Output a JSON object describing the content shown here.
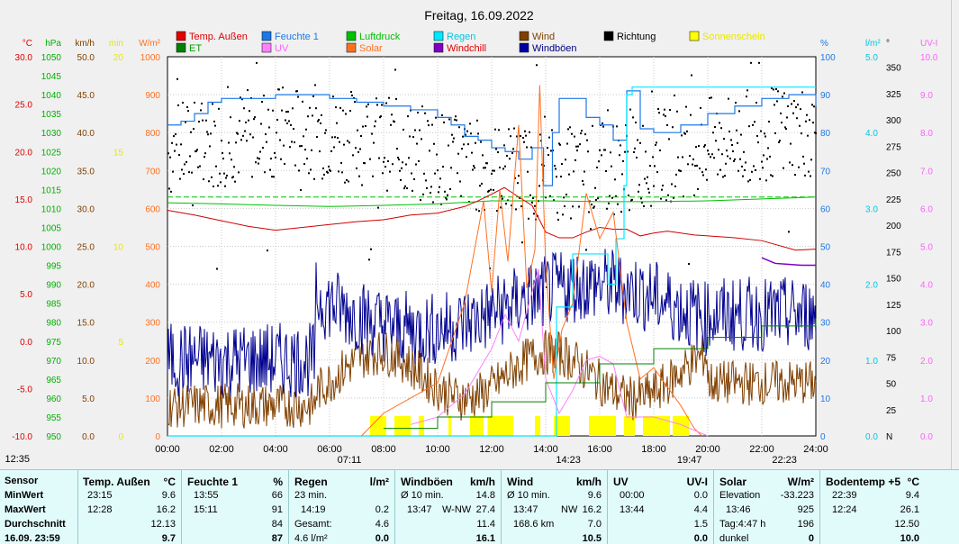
{
  "title": "Freitag, 16.09.2022",
  "chart_data": {
    "type": "line",
    "title": "Freitag, 16.09.2022",
    "x_ticks": [
      "00:00",
      "02:00",
      "04:00",
      "06:00",
      "08:00",
      "10:00",
      "12:00",
      "14:00",
      "16:00",
      "18:00",
      "20:00",
      "22:00",
      "24:00"
    ],
    "x_range_hours": [
      0,
      24
    ],
    "grid": "on",
    "legend_placement": "top",
    "legend": [
      {
        "name": "Temp. Außen",
        "color": "#e00000",
        "text_color": "#e00000"
      },
      {
        "name": "Feuchte 1",
        "color": "#1e78e6",
        "text_color": "#1e78e6"
      },
      {
        "name": "Luftdruck",
        "color": "#00c000",
        "text_color": "#00c000"
      },
      {
        "name": "Regen",
        "color": "#00e8ff",
        "text_color": "#00c8e0"
      },
      {
        "name": "Wind",
        "color": "#804000",
        "text_color": "#804000"
      },
      {
        "name": "Richtung",
        "color": "#000000",
        "text_color": "#000000"
      },
      {
        "name": "Sonnenschein",
        "color": "#ffff00",
        "text_color": "#e8e800"
      },
      {
        "name": "ET",
        "color": "#008000",
        "text_color": "#00a000"
      },
      {
        "name": "UV",
        "color": "#ff80ff",
        "text_color": "#ff60ff"
      },
      {
        "name": "Solar",
        "color": "#ff7020",
        "text_color": "#ff7020"
      },
      {
        "name": "Windchill",
        "color": "#8000c0",
        "text_color": "#e00000"
      },
      {
        "name": "Windböen",
        "color": "#0000a0",
        "text_color": "#000080"
      }
    ],
    "axes": [
      {
        "unit": "°C",
        "color": "#e00000",
        "ticks": [
          "30.0",
          "25.0",
          "20.0",
          "15.0",
          "10.0",
          "5.0",
          "0.0",
          "-5.0",
          "-10.0"
        ],
        "range": [
          -10,
          30
        ]
      },
      {
        "unit": "hPa",
        "color": "#00b000",
        "ticks": [
          "1050",
          "1045",
          "1040",
          "1035",
          "1030",
          "1025",
          "1020",
          "1015",
          "1010",
          "1005",
          "1000",
          "995",
          "990",
          "985",
          "980",
          "975",
          "970",
          "965",
          "960",
          "955",
          "950"
        ],
        "range": [
          950,
          1050
        ]
      },
      {
        "unit": "km/h",
        "color": "#804000",
        "ticks": [
          "50.0",
          "45.0",
          "40.0",
          "35.0",
          "30.0",
          "25.0",
          "20.0",
          "15.0",
          "10.0",
          "5.0",
          "0.0"
        ],
        "range": [
          0,
          50
        ]
      },
      {
        "unit": "min",
        "color": "#e8e800",
        "ticks": [
          "20",
          "15",
          "10",
          "5",
          "0"
        ],
        "range": [
          0,
          20
        ]
      },
      {
        "unit": "W/m²",
        "color": "#ff7020",
        "ticks": [
          "1000",
          "900",
          "800",
          "700",
          "600",
          "500",
          "400",
          "300",
          "200",
          "100",
          "0"
        ],
        "range": [
          0,
          1000
        ]
      },
      {
        "unit": "%",
        "color": "#1e78e6",
        "ticks": [
          "100",
          "90",
          "80",
          "70",
          "60",
          "50",
          "40",
          "30",
          "20",
          "10",
          "0"
        ],
        "range": [
          0,
          100
        ]
      },
      {
        "unit": "l/m²",
        "color": "#00c8e0",
        "ticks": [
          "5.0",
          "4.0",
          "3.0",
          "2.0",
          "1.0",
          "0.0"
        ],
        "range": [
          0,
          5
        ]
      },
      {
        "unit": "°",
        "color": "#000000",
        "ticks": [
          "350",
          "325",
          "300",
          "275",
          "250",
          "225",
          "200",
          "175",
          "150",
          "125",
          "100",
          "75",
          "50",
          "25",
          "N"
        ],
        "range": [
          0,
          360
        ]
      },
      {
        "unit": "UV-I",
        "color": "#ff60ff",
        "ticks": [
          "10.0",
          "9.0",
          "8.0",
          "7.0",
          "6.0",
          "5.0",
          "4.0",
          "3.0",
          "2.0",
          "1.0",
          "0.0"
        ],
        "range": [
          0,
          10
        ]
      }
    ],
    "temperature_c": {
      "x": [
        0,
        1,
        2,
        3,
        4,
        5,
        6,
        7,
        8,
        9,
        10,
        11,
        11.5,
        12,
        12.47,
        13,
        13.5,
        14,
        14.5,
        15,
        15.5,
        16,
        16.5,
        17,
        17.5,
        18,
        18.5,
        19,
        19.5,
        20,
        21,
        22,
        23.25,
        24
      ],
      "y": [
        13.8,
        13.3,
        12.7,
        12.1,
        11.7,
        12.0,
        12.3,
        12.6,
        12.8,
        13.3,
        13.5,
        14.2,
        14.8,
        15.5,
        16.2,
        15.2,
        14.3,
        11.5,
        10.9,
        10.9,
        11.5,
        12.0,
        11.8,
        11.8,
        11.1,
        11.4,
        11.6,
        11.4,
        11.2,
        11.1,
        10.9,
        10.6,
        9.6,
        9.7
      ]
    },
    "humidity_pct": {
      "x": [
        0,
        0.5,
        1,
        1.5,
        2,
        3,
        4,
        5,
        6,
        7,
        8,
        9,
        10,
        10.5,
        11,
        11.5,
        12,
        12.5,
        13,
        13.5,
        13.92,
        14.25,
        14.5,
        15,
        15.5,
        16,
        16.5,
        17,
        17.5,
        18,
        19,
        20,
        21,
        22,
        23,
        24
      ],
      "y": [
        82,
        83,
        85,
        88,
        89,
        89,
        90,
        90,
        89,
        88,
        87,
        86,
        84,
        82,
        79,
        78,
        76,
        75,
        73,
        76,
        66,
        80,
        89,
        89,
        84,
        82,
        78,
        91,
        81,
        80,
        82,
        85,
        87,
        89,
        90,
        87
      ]
    },
    "pressure_hpa": {
      "x": [
        0,
        2,
        4,
        6,
        8,
        10,
        12,
        14,
        16,
        18,
        20,
        22,
        24
      ],
      "y": [
        1011.5,
        1011.2,
        1010.8,
        1010.5,
        1010.8,
        1011.2,
        1012,
        1012,
        1011.8,
        1011.8,
        1012,
        1012.5,
        1013
      ]
    },
    "rain_mm": {
      "x": [
        0,
        14.2,
        14.4,
        15,
        16,
        16.3,
        16.6,
        16.9,
        17,
        17.2,
        24
      ],
      "y": [
        0,
        0,
        1.7,
        2.4,
        2.4,
        2.0,
        2.6,
        3.3,
        4.5,
        4.6,
        4.6
      ]
    },
    "solar_wm2": {
      "x": [
        7.18,
        8,
        9,
        10,
        11,
        11.7,
        12,
        12.3,
        12.6,
        13,
        13.3,
        13.6,
        13.78,
        14,
        14.3,
        14.6,
        15,
        15.5,
        16,
        16.5,
        17,
        17.5,
        18,
        18.5,
        19,
        19.5,
        19.78
      ],
      "y": [
        0,
        60,
        100,
        140,
        350,
        620,
        380,
        650,
        460,
        820,
        390,
        490,
        925,
        450,
        150,
        280,
        350,
        640,
        520,
        590,
        300,
        150,
        180,
        130,
        80,
        20,
        0
      ]
    },
    "uv_index": {
      "x": [
        9,
        10,
        11,
        12,
        12.5,
        13,
        13.73,
        14,
        14.5,
        15,
        15.5,
        16,
        16.5,
        17,
        18,
        19,
        20
      ],
      "y": [
        0.3,
        0.5,
        1.1,
        2.3,
        3.2,
        2.5,
        4.4,
        1.5,
        0.6,
        1.2,
        2.0,
        2.1,
        1.9,
        0.5,
        0.5,
        0.3,
        0
      ]
    },
    "windchill_c": {
      "x": [
        22,
        22.5,
        23,
        23.5,
        24
      ],
      "y": [
        8.8,
        8.2,
        8.1,
        8.0,
        8.0
      ]
    },
    "wind_kmh_min": 0,
    "wind_kmh_max": 16.2,
    "gust_kmh_max": 27.4,
    "sunshine_minutes_daily": 287,
    "annotations": [
      "12:35",
      "07:11",
      "14:23",
      "19:47",
      "22:23"
    ]
  },
  "table": {
    "rows": [
      "Sensor",
      "MinWert",
      "MaxWert",
      "Durchschnitt",
      "16.09. 23:59"
    ],
    "temp": {
      "header": "Temp. Außen",
      "unit": "°C",
      "min_time": "23:15",
      "min": "9.6",
      "max_time": "12:28",
      "max": "16.2",
      "avg": "12.13",
      "last": "9.7"
    },
    "hum": {
      "header": "Feuchte 1",
      "unit": "%",
      "min_time": "13:55",
      "min": "66",
      "max_time": "15:11",
      "max": "91",
      "avg": "84",
      "last": "87"
    },
    "rain": {
      "header": "Regen",
      "unit": "l/m²",
      "r1_label": "23 min.",
      "r2_time": "14:19",
      "r2_val": "0.2",
      "r3_label": "Gesamt:",
      "r3_val": "4.6",
      "last_label": "4.6 l/m²",
      "last": "0.0"
    },
    "gust": {
      "header": "Windböen",
      "unit": "km/h",
      "r1_label": "Ø 10 min.",
      "r1_val": "14.8",
      "r2_time": "13:47",
      "r2_dir": "W-NW",
      "r2_val": "27.4",
      "avg": "11.4",
      "last": "16.1"
    },
    "wind": {
      "header": "Wind",
      "unit": "km/h",
      "r1_label": "Ø 10 min.",
      "r1_val": "9.6",
      "r2_time": "13:47",
      "r2_dir": "NW",
      "r2_val": "16.2",
      "r3_label": "168.6 km",
      "r3_val": "7.0",
      "last": "10.5"
    },
    "uv": {
      "header": "UV",
      "unit": "UV-I",
      "min_time": "00:00",
      "min": "0.0",
      "max_time": "13:44",
      "max": "4.4",
      "avg": "1.5",
      "last": "0.0"
    },
    "solar": {
      "header": "Solar",
      "unit": "W/m²",
      "r1_label": "Elevation",
      "r1_val": "-33.223",
      "r2_time": "13:46",
      "r2_val": "925",
      "r3_label": "Tag:4:47 h",
      "r3_val": "196",
      "last_label": "dunkel",
      "last": "0"
    },
    "soil": {
      "header": "Bodentemp +5",
      "unit": "°C",
      "min_time": "22:39",
      "min": "9.4",
      "max_time": "12:24",
      "max": "26.1",
      "avg": "12.50",
      "last": "10.0"
    }
  }
}
